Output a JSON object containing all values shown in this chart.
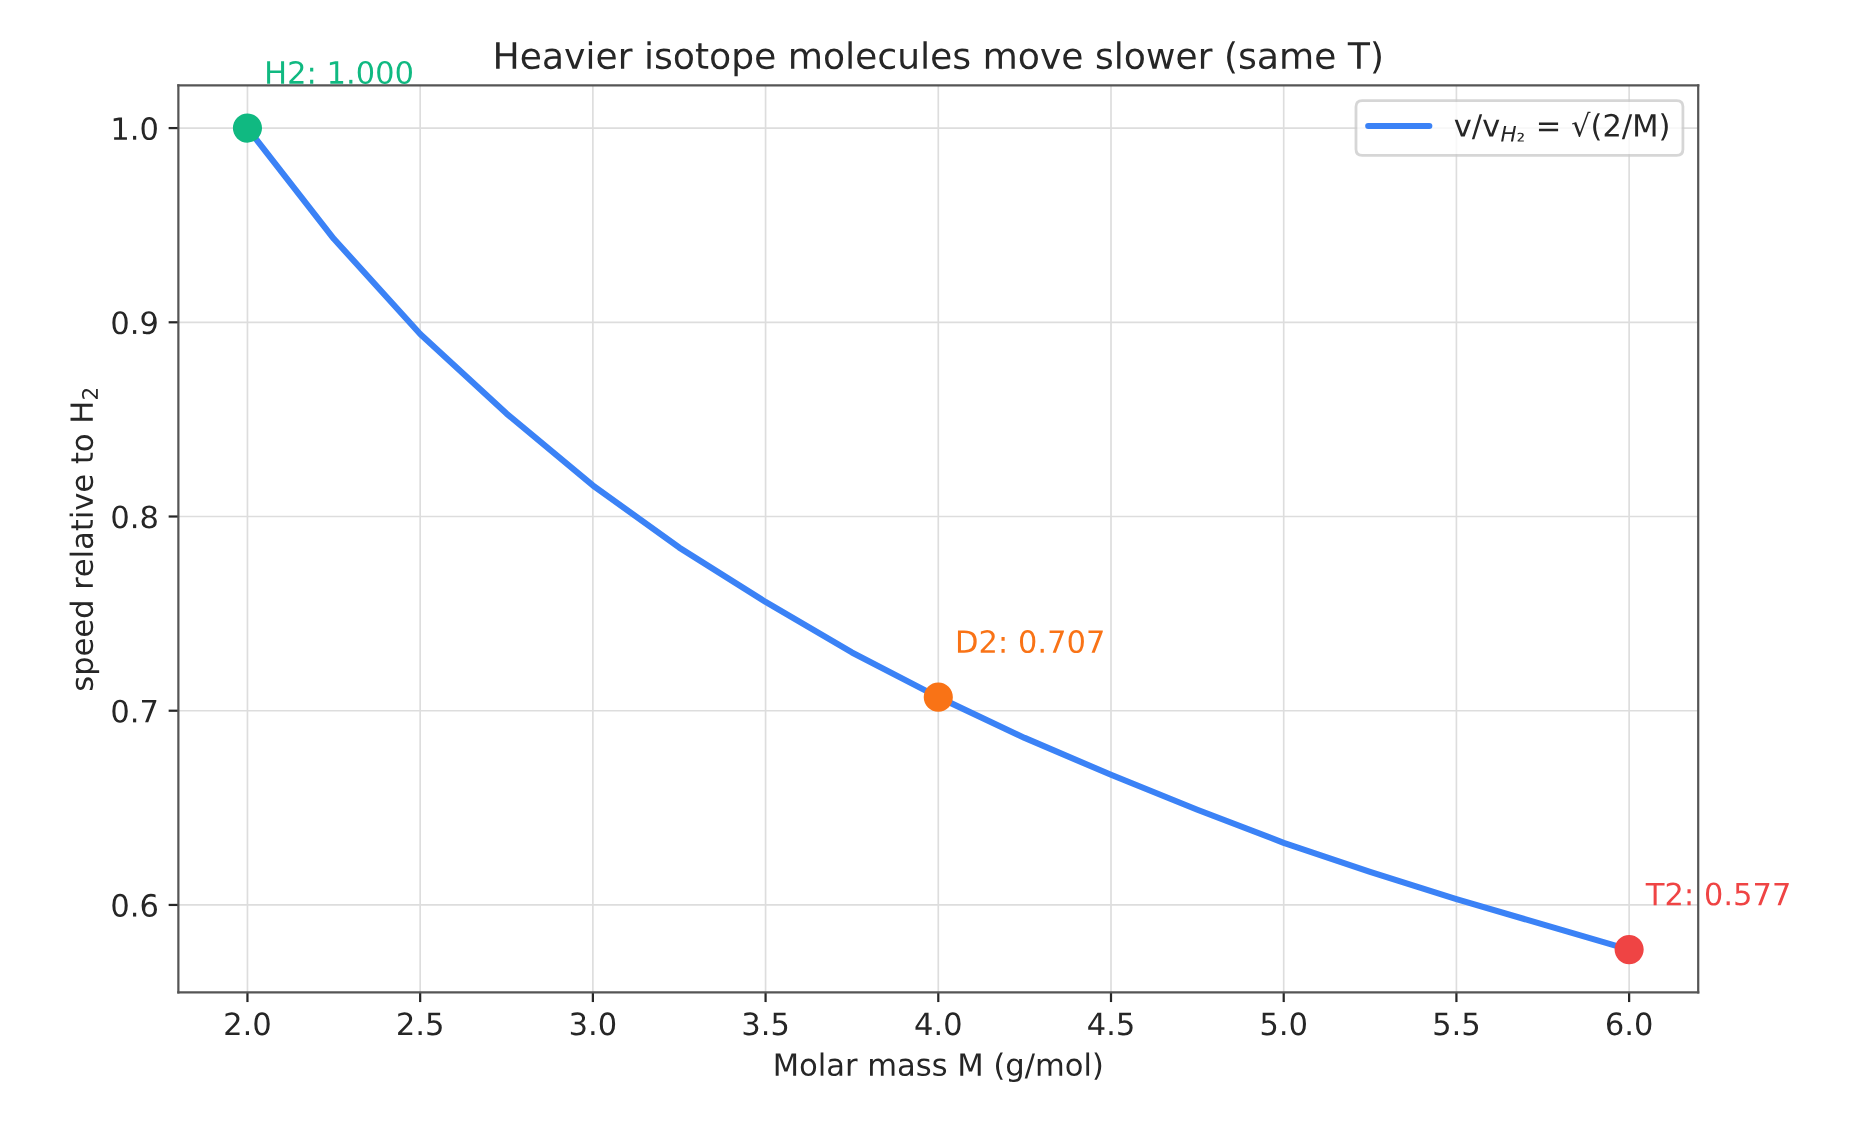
{
  "chart_data": {
    "type": "line",
    "title": "Heavier isotope molecules move slower (same T)",
    "xlabel": "Molar mass M (g/mol)",
    "ylabel": "speed relative to H$_{2}$",
    "series": [
      {
        "name": "v/v$_{H₂}$ = √(2/M)",
        "color": "#3b82f6",
        "x": [
          2,
          2.25,
          2.5,
          2.75,
          3,
          3.25,
          3.5,
          3.75,
          4,
          4.25,
          4.5,
          4.75,
          5,
          5.25,
          5.5,
          5.75,
          6
        ],
        "values": [
          1.0,
          0.943,
          0.894,
          0.853,
          0.816,
          0.784,
          0.756,
          0.73,
          0.707,
          0.686,
          0.667,
          0.649,
          0.632,
          0.617,
          0.603,
          0.59,
          0.577
        ]
      },
      {
        "type": "scatter",
        "marker": "circle",
        "x": [
          2,
          4,
          6
        ],
        "values": [
          1.0,
          0.707,
          0.577
        ],
        "colors": [
          "#10b981",
          "#f97316",
          "#ef4444"
        ]
      }
    ],
    "annotations": [
      {
        "text": "H2: 1.000",
        "x": 2,
        "y": 1.0
      },
      {
        "text": "D2: 0.707",
        "x": 4,
        "y": 0.707
      },
      {
        "text": "T2: 0.577",
        "x": 6,
        "y": 0.577
      }
    ],
    "xlim": [
      1.8,
      6.2
    ],
    "ylim": [
      0.555,
      1.022
    ],
    "xticks": [
      {
        "value": 2,
        "label": "2.0"
      },
      2.5,
      {
        "value": 3,
        "label": "3.0"
      },
      3.5,
      {
        "value": 4,
        "label": "4.0"
      },
      4.5,
      {
        "value": 5,
        "label": "5.0"
      },
      5.5,
      {
        "value": 6,
        "label": "6.0"
      }
    ],
    "yticks": [
      0.6,
      0.7,
      0.8,
      0.9,
      {
        "value": 1,
        "label": "1.0"
      }
    ],
    "grid": true,
    "legend": "top right"
  }
}
